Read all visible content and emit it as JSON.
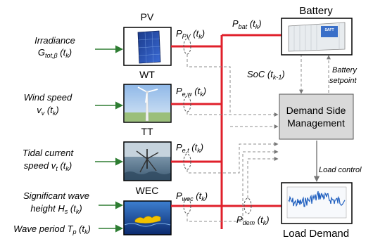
{
  "inputs": {
    "irradiance": {
      "line1": "Irradiance",
      "line2_main": "G",
      "line2_sub": "tot,β",
      "line2_tail": " (t",
      "line2_k": "k",
      "line2_end": ")"
    },
    "wind": {
      "line1": "Wind speed",
      "line2_main": "v",
      "line2_sub": "v",
      "line2_tail": " (t",
      "line2_k": "k",
      "line2_end": ")"
    },
    "tidal": {
      "line1": "Tidal current",
      "line2_main": "speed v",
      "line2_sub": "t",
      "line2_tail": " (t",
      "line2_k": "k",
      "line2_end": ")"
    },
    "wave_height": {
      "line1": "Significant wave",
      "line2_main": "height H",
      "line2_sub": "s",
      "line2_tail": " (t",
      "line2_k": "k",
      "line2_end": ")"
    },
    "wave_period": {
      "line1_main": "Wave period T",
      "line1_sub": "p",
      "line1_tail": " (t",
      "line1_k": "k",
      "line1_end": ")"
    }
  },
  "sources": {
    "pv": "PV",
    "wt": "WT",
    "tt": "TT",
    "wec": "WEC"
  },
  "powers": {
    "p_pv": {
      "main": "P",
      "sub": "PV",
      "tail": " (t",
      "k": "k",
      "end": ")"
    },
    "p_ew": {
      "main": "P",
      "sub": "e,w",
      "tail": " (t",
      "k": "k",
      "end": ")"
    },
    "p_et": {
      "main": "P",
      "sub": "e,t",
      "tail": " (t",
      "k": "k",
      "end": ")"
    },
    "p_wec": {
      "main": "P",
      "sub": "wec",
      "tail": " (t",
      "k": "k",
      "end": ")"
    },
    "p_bat": {
      "main": "P",
      "sub": "bat",
      "tail": " (t",
      "k": "k",
      "end": ")"
    },
    "p_dem": {
      "main": "P",
      "sub": "dem",
      "tail": " (t",
      "k": "k",
      "end": ")"
    }
  },
  "battery": {
    "title": "Battery",
    "brand": "SAFT",
    "soc_main": "SoC (t",
    "soc_sub": "k-1",
    "soc_end": ")",
    "setpoint_line1": "Battery",
    "setpoint_line2": "setpoint"
  },
  "dsm": {
    "line1": "Demand Side",
    "line2": "Management"
  },
  "load": {
    "control": "Load control",
    "title": "Load Demand"
  },
  "colors": {
    "bus_red": "#e0202b",
    "arrow_green": "#2e7d32",
    "dash_gray": "#8c8c8c",
    "dsm_fill": "#d9d9d9",
    "load_plot": "#1f5fbf"
  }
}
